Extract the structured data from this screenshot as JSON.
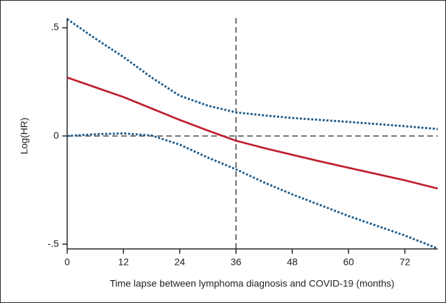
{
  "chart_data": {
    "type": "line",
    "x_label": "Time lapse between lymphoma diagnosis and COVID-19 (months)",
    "y_label": "Log(HR)",
    "x": [
      0,
      6,
      12,
      18,
      24,
      30,
      36,
      42,
      48,
      54,
      60,
      66,
      72,
      79
    ],
    "series": [
      {
        "color": "#1f5c8b",
        "style": "dotted",
        "values": [
          0.54,
          0.45,
          0.365,
          0.27,
          0.186,
          0.14,
          0.109,
          0.095,
          0.083,
          0.074,
          0.065,
          0.055,
          0.045,
          0.032
        ]
      },
      {
        "color": "#c0202f",
        "style": "solid",
        "values": [
          0.27,
          0.225,
          0.18,
          0.127,
          0.074,
          0.025,
          -0.022,
          -0.056,
          -0.087,
          -0.118,
          -0.147,
          -0.176,
          -0.205,
          -0.243
        ]
      },
      {
        "color": "#1f5c8b",
        "style": "dotted",
        "values": [
          0,
          0.008,
          0.012,
          0.002,
          -0.04,
          -0.1,
          -0.154,
          -0.215,
          -0.27,
          -0.32,
          -0.37,
          -0.415,
          -0.46,
          -0.52
        ]
      }
    ],
    "xlim": [
      0,
      79
    ],
    "xticks": [
      0,
      12,
      24,
      36,
      48,
      60,
      72
    ],
    "ylim": [
      -0.522,
      0.545
    ],
    "yticks": [
      {
        "value": 0.5,
        "label": ".5"
      },
      0,
      {
        "value": -0.5,
        "label": "-.5"
      }
    ],
    "vlines": [
      36
    ],
    "hlines": [
      0
    ]
  }
}
